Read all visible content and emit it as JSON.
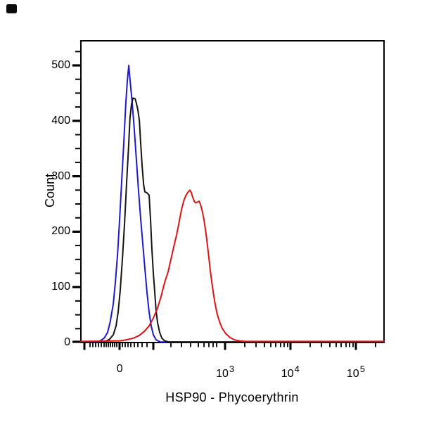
{
  "window": {
    "background": "#ffffff",
    "marker_color": "#0a0a0a"
  },
  "chart_data": {
    "type": "line",
    "subtype": "flow-cytometry-histogram-overlay",
    "title": "",
    "xlabel": "HSP90 - Phycoerythrin",
    "ylabel": "Count",
    "x_scale": "biexponential-logicle",
    "ylim": [
      0,
      544
    ],
    "grid": false,
    "legend": "none",
    "axis_color": "#000000",
    "yticks": [
      0,
      100,
      200,
      300,
      400,
      500
    ],
    "xticks": [
      {
        "text": "0",
        "exp": "",
        "pos": 0.128
      },
      {
        "text": "10",
        "exp": "3",
        "pos": 0.476
      },
      {
        "text": "10",
        "exp": "4",
        "pos": 0.691
      },
      {
        "text": "10",
        "exp": "5",
        "pos": 0.907
      }
    ],
    "series": [
      {
        "name": "blue",
        "color": "#1b1ace",
        "points_pos": [
          0.0,
          0.058,
          0.077,
          0.088,
          0.097,
          0.107,
          0.114,
          0.121,
          0.128,
          0.135,
          0.142,
          0.148,
          0.153,
          0.158,
          0.162,
          0.169,
          0.176,
          0.183,
          0.19,
          0.197,
          0.204,
          0.211,
          0.218,
          0.225,
          0.232,
          0.239,
          0.248,
          0.262,
          1.0
        ],
        "points_count": [
          1,
          1,
          8,
          18,
          38,
          70,
          110,
          160,
          225,
          295,
          365,
          430,
          470,
          500,
          475,
          435,
          385,
          330,
          275,
          225,
          180,
          135,
          90,
          55,
          30,
          14,
          5,
          1,
          1
        ]
      },
      {
        "name": "black",
        "color": "#141414",
        "points_pos": [
          0.0,
          0.081,
          0.095,
          0.107,
          0.116,
          0.123,
          0.13,
          0.137,
          0.144,
          0.151,
          0.158,
          0.162,
          0.167,
          0.172,
          0.179,
          0.183,
          0.188,
          0.193,
          0.197,
          0.202,
          0.207,
          0.211,
          0.218,
          0.225,
          0.23,
          0.234,
          0.239,
          0.244,
          0.248,
          0.253,
          0.26,
          0.267,
          0.276,
          0.29,
          1.0
        ],
        "points_count": [
          1,
          2,
          6,
          14,
          30,
          55,
          95,
          150,
          215,
          290,
          360,
          405,
          430,
          441,
          440,
          432,
          420,
          400,
          362,
          318,
          285,
          272,
          270,
          266,
          220,
          170,
          125,
          88,
          58,
          36,
          18,
          8,
          3,
          1,
          1
        ]
      },
      {
        "name": "red",
        "color": "#e01313",
        "points_pos": [
          0.0,
          0.128,
          0.151,
          0.174,
          0.193,
          0.209,
          0.225,
          0.239,
          0.253,
          0.265,
          0.276,
          0.288,
          0.297,
          0.306,
          0.316,
          0.325,
          0.332,
          0.339,
          0.346,
          0.353,
          0.36,
          0.364,
          0.369,
          0.374,
          0.378,
          0.383,
          0.39,
          0.394,
          0.399,
          0.406,
          0.413,
          0.42,
          0.427,
          0.434,
          0.441,
          0.448,
          0.457,
          0.466,
          0.478,
          0.492,
          0.506,
          0.522,
          0.545,
          1.0
        ],
        "points_count": [
          2,
          3,
          5,
          8,
          13,
          20,
          30,
          44,
          62,
          84,
          108,
          128,
          150,
          172,
          195,
          220,
          240,
          255,
          265,
          271,
          275,
          271,
          262,
          255,
          252,
          253,
          255,
          250,
          240,
          222,
          196,
          164,
          130,
          100,
          75,
          55,
          38,
          26,
          16,
          9,
          5,
          3,
          2,
          2
        ]
      }
    ],
    "peaks": {
      "blue": {
        "pos": 0.158,
        "count": 500
      },
      "black": {
        "pos": 0.172,
        "count": 441
      },
      "red": {
        "pos": 0.36,
        "count": 275
      }
    }
  }
}
